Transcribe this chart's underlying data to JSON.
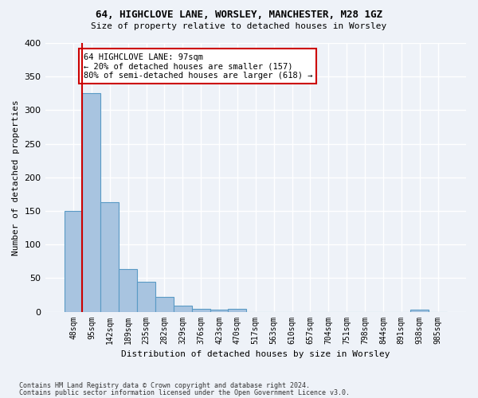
{
  "title1": "64, HIGHCLOVE LANE, WORSLEY, MANCHESTER, M28 1GZ",
  "title2": "Size of property relative to detached houses in Worsley",
  "xlabel": "Distribution of detached houses by size in Worsley",
  "ylabel": "Number of detached properties",
  "footer1": "Contains HM Land Registry data © Crown copyright and database right 2024.",
  "footer2": "Contains public sector information licensed under the Open Government Licence v3.0.",
  "bin_labels": [
    "48sqm",
    "95sqm",
    "142sqm",
    "189sqm",
    "235sqm",
    "282sqm",
    "329sqm",
    "376sqm",
    "423sqm",
    "470sqm",
    "517sqm",
    "563sqm",
    "610sqm",
    "657sqm",
    "704sqm",
    "751sqm",
    "798sqm",
    "844sqm",
    "891sqm",
    "938sqm",
    "985sqm"
  ],
  "bar_values": [
    150,
    325,
    163,
    63,
    45,
    22,
    9,
    4,
    3,
    4,
    0,
    0,
    0,
    0,
    0,
    0,
    0,
    0,
    0,
    3,
    0
  ],
  "bar_color": "#a8c4e0",
  "bar_edge_color": "#5a9ac5",
  "property_line_color": "#cc0000",
  "annotation_text": "64 HIGHCLOVE LANE: 97sqm\n← 20% of detached houses are smaller (157)\n80% of semi-detached houses are larger (618) →",
  "annotation_box_color": "#ffffff",
  "annotation_border_color": "#cc0000",
  "ylim": [
    0,
    400
  ],
  "yticks": [
    0,
    50,
    100,
    150,
    200,
    250,
    300,
    350,
    400
  ],
  "background_color": "#eef2f8",
  "grid_color": "#ffffff"
}
